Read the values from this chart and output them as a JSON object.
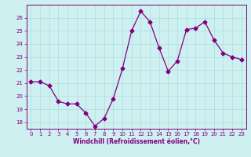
{
  "x": [
    0,
    1,
    2,
    3,
    4,
    5,
    6,
    7,
    8,
    9,
    10,
    11,
    12,
    13,
    14,
    15,
    16,
    17,
    18,
    19,
    20,
    21,
    22,
    23
  ],
  "y": [
    21.1,
    21.1,
    20.8,
    19.6,
    19.4,
    19.4,
    18.7,
    17.7,
    18.3,
    19.8,
    22.1,
    25.0,
    26.5,
    25.7,
    23.7,
    21.9,
    22.7,
    25.1,
    25.2,
    25.7,
    24.3,
    23.3,
    23.0,
    22.8
  ],
  "line_color": "#800080",
  "marker": "D",
  "marker_size": 2.5,
  "bg_color": "#cff0f0",
  "grid_color": "#aadddd",
  "xlabel": "Windchill (Refroidissement éolien,°C)",
  "xlabel_color": "#800080",
  "tick_color": "#800080",
  "ylim": [
    17.5,
    27.0
  ],
  "yticks": [
    18,
    19,
    20,
    21,
    22,
    23,
    24,
    25,
    26
  ],
  "xlim": [
    -0.5,
    23.5
  ],
  "xticks": [
    0,
    1,
    2,
    3,
    4,
    5,
    6,
    7,
    8,
    9,
    10,
    11,
    12,
    13,
    14,
    15,
    16,
    17,
    18,
    19,
    20,
    21,
    22,
    23
  ]
}
